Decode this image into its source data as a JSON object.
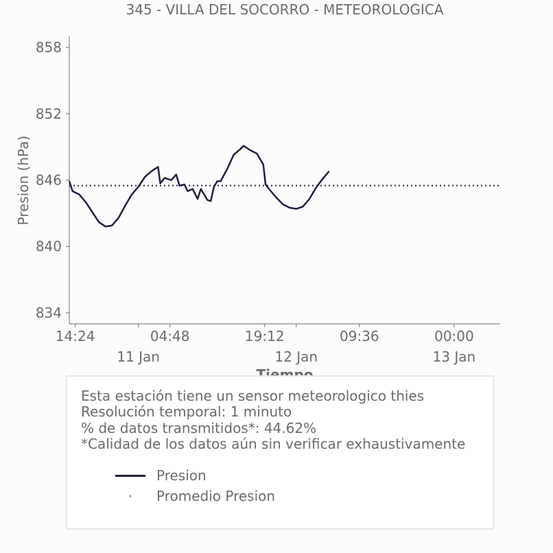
{
  "chart_data": {
    "type": "line",
    "title": "345 - VILLA DEL SOCORRO - METEOROLOGICA",
    "xlabel": "Tiempo",
    "ylabel": "Presion (hPa)",
    "ylim": [
      833,
      859
    ],
    "yticks": [
      834,
      840,
      846,
      852,
      858
    ],
    "x_range": [
      "2024-01-10 13:30",
      "2024-01-13 07:00"
    ],
    "xticks": [
      {
        "x": "2024-01-10 14:24",
        "label": "14:24",
        "date_label": ""
      },
      {
        "x": "2024-01-11 00:00",
        "label": "",
        "date_label": "11 Jan"
      },
      {
        "x": "2024-01-11 04:48",
        "label": "04:48",
        "date_label": ""
      },
      {
        "x": "2024-01-11 19:12",
        "label": "19:12",
        "date_label": ""
      },
      {
        "x": "2024-01-12 00:00",
        "label": "",
        "date_label": "12 Jan"
      },
      {
        "x": "2024-01-12 09:36",
        "label": "09:36",
        "date_label": ""
      },
      {
        "x": "2024-01-13 00:00",
        "label": "00:00",
        "date_label": "13 Jan"
      }
    ],
    "grid": false,
    "series": [
      {
        "name": "Presion",
        "style": "solid",
        "color": "#1f1f3d",
        "points": [
          [
            "2024-01-10 13:30",
            845.9
          ],
          [
            "2024-01-10 14:00",
            845.0
          ],
          [
            "2024-01-10 15:00",
            844.7
          ],
          [
            "2024-01-10 16:00",
            844.0
          ],
          [
            "2024-01-10 17:00",
            843.1
          ],
          [
            "2024-01-10 18:00",
            842.2
          ],
          [
            "2024-01-10 19:00",
            841.8
          ],
          [
            "2024-01-10 20:00",
            841.9
          ],
          [
            "2024-01-10 21:00",
            842.6
          ],
          [
            "2024-01-10 22:00",
            843.7
          ],
          [
            "2024-01-10 23:00",
            844.7
          ],
          [
            "2024-01-11 00:00",
            845.4
          ],
          [
            "2024-01-11 01:00",
            846.3
          ],
          [
            "2024-01-11 02:00",
            846.8
          ],
          [
            "2024-01-11 03:00",
            847.2
          ],
          [
            "2024-01-11 03:20",
            845.7
          ],
          [
            "2024-01-11 04:00",
            846.2
          ],
          [
            "2024-01-11 05:00",
            846.0
          ],
          [
            "2024-01-11 05:45",
            846.5
          ],
          [
            "2024-01-11 06:15",
            845.5
          ],
          [
            "2024-01-11 07:00",
            845.6
          ],
          [
            "2024-01-11 07:30",
            845.0
          ],
          [
            "2024-01-11 08:15",
            845.2
          ],
          [
            "2024-01-11 09:00",
            844.3
          ],
          [
            "2024-01-11 09:30",
            845.2
          ],
          [
            "2024-01-11 10:30",
            844.2
          ],
          [
            "2024-01-11 11:00",
            844.1
          ],
          [
            "2024-01-11 11:30",
            845.4
          ],
          [
            "2024-01-11 12:00",
            845.9
          ],
          [
            "2024-01-11 12:30",
            845.9
          ],
          [
            "2024-01-11 13:30",
            847.0
          ],
          [
            "2024-01-11 14:30",
            848.3
          ],
          [
            "2024-01-11 15:30",
            848.8
          ],
          [
            "2024-01-11 16:00",
            849.1
          ],
          [
            "2024-01-11 17:00",
            848.7
          ],
          [
            "2024-01-11 18:00",
            848.4
          ],
          [
            "2024-01-11 19:00",
            847.4
          ],
          [
            "2024-01-11 19:20",
            845.6
          ],
          [
            "2024-01-11 20:00",
            845.1
          ],
          [
            "2024-01-11 21:00",
            844.4
          ],
          [
            "2024-01-11 22:00",
            843.8
          ],
          [
            "2024-01-11 23:00",
            843.5
          ],
          [
            "2024-01-12 00:00",
            843.4
          ],
          [
            "2024-01-12 01:00",
            843.6
          ],
          [
            "2024-01-12 02:00",
            844.3
          ],
          [
            "2024-01-12 03:00",
            845.3
          ],
          [
            "2024-01-12 04:00",
            846.1
          ],
          [
            "2024-01-12 05:00",
            846.8
          ]
        ]
      },
      {
        "name": "Promedio Presion",
        "style": "dotted",
        "color": "#1f1f3d",
        "value": 845.5
      }
    ],
    "legend": [
      "Presion",
      "Promedio Presion"
    ]
  },
  "info": {
    "lines": [
      "Esta estación tiene un sensor meteorologico thies",
      "Resolución temporal: 1 minuto",
      "% de datos transmitidos*: 44.62%",
      "*Calidad de los datos aún sin verificar exhaustivamente"
    ]
  }
}
